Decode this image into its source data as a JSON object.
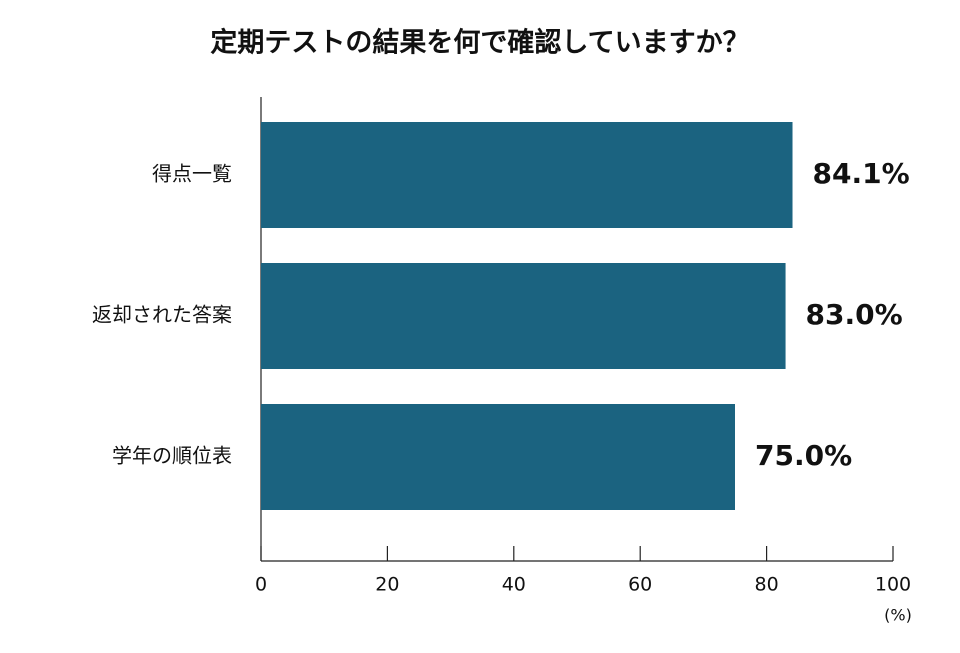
{
  "chart_data": {
    "type": "hbar",
    "title": "定期テストの結果を何で確認していますか？",
    "categories": [
      "得点一覧",
      "返却された答案",
      "学年の順位表"
    ],
    "values": [
      84.1,
      83.0,
      75.0
    ],
    "value_labels": [
      "84.1%",
      "83.0%",
      "75.0%"
    ],
    "color": "#1b6380",
    "xlim": [
      0,
      100
    ],
    "xticks": [
      0,
      20,
      40,
      60,
      80,
      100
    ],
    "xlabel": "(%)",
    "grid": false
  }
}
